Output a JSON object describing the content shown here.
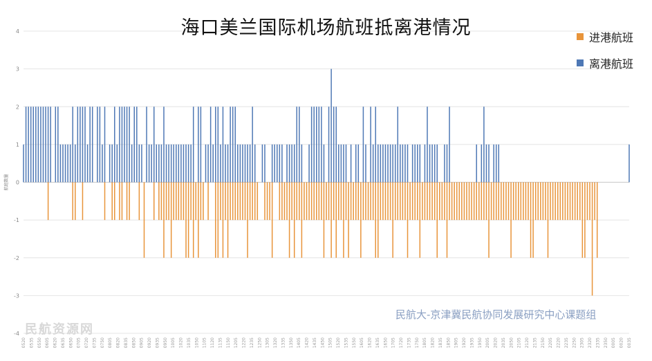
{
  "chart_data": {
    "type": "bar",
    "title": "海口美兰国际机场航班抵离港情况",
    "ylabel": "航班数量",
    "ylim": [
      -4,
      4
    ],
    "yticks": [
      4,
      3,
      2,
      1,
      0,
      -1,
      -2,
      -3,
      -4
    ],
    "grid": true,
    "legend_position": "top-right",
    "colors": {
      "departures": "#4e78b5",
      "arrivals": "#e8943a",
      "grid": "#e4e4e4"
    },
    "x_tick_labels": [
      "0520",
      "0535",
      "0550",
      "0605",
      "0620",
      "0635",
      "0650",
      "0705",
      "0720",
      "0735",
      "0750",
      "0805",
      "0820",
      "0835",
      "0850",
      "0905",
      "0920",
      "0935",
      "0950",
      "1005",
      "1020",
      "1035",
      "1050",
      "1105",
      "1120",
      "1135",
      "1150",
      "1205",
      "1220",
      "1235",
      "1250",
      "1305",
      "1320",
      "1335",
      "1350",
      "1405",
      "1420",
      "1435",
      "1450",
      "1505",
      "1520",
      "1535",
      "1550",
      "1605",
      "1620",
      "1635",
      "1650",
      "1705",
      "1720",
      "1735",
      "1750",
      "1805",
      "1820",
      "1835",
      "1850",
      "1905",
      "1920",
      "1935",
      "1950",
      "2005",
      "2020",
      "2035",
      "2050",
      "2105",
      "2120",
      "2135",
      "2150",
      "2205",
      "2220",
      "2235",
      "2250",
      "2305",
      "2320",
      "2335",
      "2350",
      "0005",
      "0020",
      "0035"
    ],
    "series": [
      {
        "name": "进港航班",
        "values": [
          0,
          0,
          0,
          0,
          0,
          0,
          0,
          0,
          0,
          0,
          -1,
          0,
          0,
          0,
          0,
          0,
          0,
          0,
          0,
          0,
          -1,
          -1,
          0,
          0,
          -1,
          0,
          0,
          0,
          0,
          0,
          0,
          0,
          0,
          -1,
          0,
          0,
          -1,
          -1,
          0,
          -1,
          -1,
          0,
          -1,
          -1,
          0,
          0,
          0,
          -1,
          0,
          -2,
          0,
          0,
          0,
          -1,
          0,
          -1,
          -1,
          -2,
          -1,
          -1,
          -2,
          -1,
          -1,
          -1,
          -1,
          -1,
          -2,
          -2,
          -1,
          -2,
          -1,
          -2,
          -1,
          -1,
          0,
          -1,
          0,
          0,
          -2,
          -2,
          -1,
          -2,
          -1,
          -2,
          -1,
          -1,
          -1,
          -1,
          -1,
          -1,
          -1,
          -2,
          -1,
          -1,
          -1,
          -1,
          0,
          0,
          -1,
          -1,
          -1,
          -2,
          0,
          0,
          -1,
          -1,
          -1,
          -1,
          -2,
          -1,
          -2,
          -1,
          -1,
          -2,
          -1,
          -1,
          -1,
          -1,
          -1,
          -1,
          -1,
          -1,
          -2,
          -1,
          -1,
          -2,
          -1,
          -2,
          -1,
          -1,
          -2,
          -1,
          -2,
          -1,
          -1,
          -1,
          -1,
          -2,
          -1,
          -1,
          -1,
          -1,
          -1,
          -2,
          -2,
          -1,
          -1,
          -1,
          -1,
          -1,
          -2,
          -1,
          -1,
          -1,
          -1,
          -1,
          -2,
          -1,
          -1,
          -1,
          -1,
          -2,
          -1,
          -1,
          -1,
          -1,
          -1,
          -1,
          -2,
          -1,
          -1,
          -1,
          -2,
          -1,
          -1,
          -1,
          -1,
          -1,
          -1,
          -1,
          -1,
          -1,
          -1,
          -1,
          -1,
          -1,
          -1,
          -1,
          -1,
          -2,
          -1,
          -1,
          -1,
          -1,
          -1,
          -1,
          -1,
          -1,
          -2,
          -1,
          -1,
          -1,
          -1,
          -1,
          -1,
          -1,
          -2,
          -2,
          -1,
          -1,
          -1,
          -1,
          -1,
          -2,
          -1,
          -1,
          -1,
          -1,
          -1,
          -1,
          -1,
          -1,
          -1,
          -1,
          -1,
          -1,
          -1,
          -2,
          -2,
          -1,
          -1,
          -3,
          -1,
          -2,
          0
        ]
      },
      {
        "name": "离港航班",
        "values": [
          1,
          2,
          2,
          2,
          2,
          2,
          2,
          2,
          2,
          2,
          2,
          2,
          0,
          2,
          2,
          1,
          1,
          1,
          1,
          1,
          2,
          1,
          2,
          2,
          2,
          2,
          1,
          2,
          2,
          0,
          2,
          2,
          1,
          2,
          0,
          1,
          1,
          2,
          1,
          2,
          2,
          2,
          2,
          2,
          1,
          2,
          2,
          1,
          1,
          0,
          2,
          1,
          1,
          2,
          1,
          1,
          1,
          2,
          1,
          1,
          1,
          1,
          1,
          1,
          1,
          1,
          1,
          1,
          1,
          2,
          0,
          2,
          2,
          0,
          1,
          1,
          2,
          1,
          2,
          2,
          1,
          2,
          1,
          1,
          2,
          2,
          2,
          1,
          1,
          1,
          1,
          1,
          1,
          2,
          1,
          0,
          0,
          1,
          1,
          0,
          0,
          1,
          1,
          1,
          1,
          1,
          0,
          1,
          1,
          1,
          1,
          2,
          2,
          1,
          0,
          0,
          1,
          2,
          2,
          2,
          2,
          2,
          1,
          0,
          2,
          3,
          2,
          2,
          1,
          1,
          1,
          1,
          0,
          1,
          0,
          1,
          1,
          0,
          2,
          1,
          0,
          2,
          1,
          2,
          1,
          1,
          1,
          1,
          1,
          1,
          1,
          1,
          2,
          1,
          1,
          1,
          1,
          0,
          1,
          1,
          1,
          1,
          0,
          1,
          2,
          1,
          1,
          1,
          1,
          0,
          0,
          1,
          1,
          2,
          0,
          0,
          0,
          0,
          0,
          0,
          0,
          0,
          0,
          0,
          1,
          0,
          1,
          2,
          1,
          1,
          0,
          1,
          1,
          1,
          0,
          0,
          0,
          0,
          0,
          0,
          0,
          0,
          0,
          0,
          0,
          0,
          0,
          0,
          0,
          0,
          0,
          0,
          0,
          0,
          0,
          0,
          0,
          0,
          0,
          0,
          0,
          0,
          0,
          0,
          0,
          0,
          0,
          0,
          0,
          0,
          0,
          0,
          0,
          0,
          0,
          0,
          0,
          0,
          0,
          0,
          0,
          0,
          0,
          0,
          0,
          0,
          1
        ]
      }
    ]
  },
  "source_text": "民航大-京津冀民航协同发展研究中心课题组",
  "watermark_text": "民航资源网"
}
